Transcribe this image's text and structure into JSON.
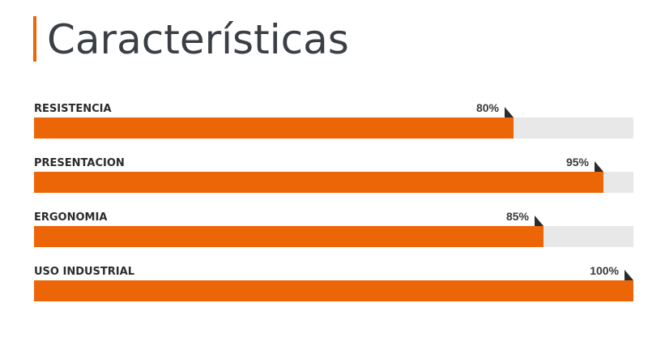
{
  "chart_data": {
    "type": "progress",
    "title": "Características",
    "categories": [
      "RESISTENCIA",
      "PRESENTACION",
      "ERGONOMIA",
      "USO INDUSTRIAL"
    ],
    "values": [
      80,
      95,
      85,
      100
    ],
    "value_labels": [
      "80%",
      "95%",
      "85%",
      "100%"
    ],
    "xlim": [
      0,
      100
    ],
    "color": "#ec6608",
    "track_color": "#e8e8e8"
  }
}
